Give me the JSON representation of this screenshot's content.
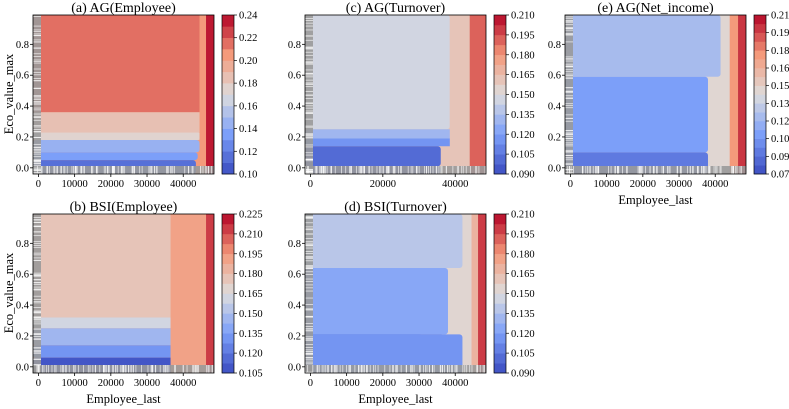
{
  "figure": {
    "ylabel": "Eco_value_max",
    "xlabel": "Employee_last"
  },
  "chart_data": [
    {
      "id": "a",
      "type": "heatmap",
      "subtype": "filled-contour partial dependence",
      "title": "(a) AG(Employee)",
      "xlabel": "",
      "ylabel": "Eco_value_max",
      "xlim": [
        -1500,
        48500
      ],
      "ylim": [
        -0.04,
        0.99
      ],
      "xticks": [
        0,
        10000,
        20000,
        30000,
        40000
      ],
      "xtick_labels": [
        "0",
        "10000",
        "20000",
        "30000",
        "40000"
      ],
      "yticks": [
        0.0,
        0.2,
        0.4,
        0.6,
        0.8
      ],
      "ytick_labels": [
        "0.0",
        "0.2",
        "0.4",
        "0.6",
        "0.8"
      ],
      "colorbar": {
        "ticks": [
          0.1,
          0.12,
          0.14,
          0.16,
          0.18,
          0.2,
          0.22,
          0.24
        ],
        "tick_labels": [
          "0.10",
          "0.12",
          "0.14",
          "0.16",
          "0.18",
          "0.20",
          "0.22",
          "0.24"
        ],
        "levels": 14
      },
      "zones": [
        {
          "y_min": 0.36,
          "y_max": 0.99,
          "x_max": 46500,
          "value": 0.215
        },
        {
          "y_min": 0.23,
          "y_max": 0.36,
          "x_max": 47000,
          "value": 0.185
        },
        {
          "y_min": 0.18,
          "y_max": 0.23,
          "x_max": 45000,
          "value": 0.17
        },
        {
          "y_min": 0.1,
          "y_max": 0.18,
          "x_max": 44500,
          "value": 0.15
        },
        {
          "y_min": 0.05,
          "y_max": 0.1,
          "x_max": 44000,
          "value": 0.135
        },
        {
          "y_min": -0.04,
          "y_max": 0.05,
          "x_max": 43500,
          "value": 0.115
        }
      ],
      "right_edge": [
        {
          "x_min": 44500,
          "x_max": 46300,
          "value": 0.2
        },
        {
          "x_min": 46300,
          "x_max": 48500,
          "value": 0.232
        }
      ]
    },
    {
      "id": "b",
      "type": "heatmap",
      "subtype": "filled-contour partial dependence",
      "title": "(b) BSI(Employee)",
      "xlabel": "Employee_last",
      "ylabel": "Eco_value_max",
      "xlim": [
        -1500,
        48500
      ],
      "ylim": [
        -0.04,
        0.99
      ],
      "xticks": [
        0,
        10000,
        20000,
        30000,
        40000
      ],
      "xtick_labels": [
        "0",
        "10000",
        "20000",
        "30000",
        "40000"
      ],
      "yticks": [
        0.0,
        0.2,
        0.4,
        0.6,
        0.8
      ],
      "ytick_labels": [
        "0.0",
        "0.2",
        "0.4",
        "0.6",
        "0.8"
      ],
      "colorbar": {
        "ticks": [
          0.105,
          0.12,
          0.135,
          0.15,
          0.165,
          0.18,
          0.195,
          0.21,
          0.225
        ],
        "tick_labels": [
          "0.105",
          "0.120",
          "0.135",
          "0.150",
          "0.165",
          "0.180",
          "0.195",
          "0.210",
          "0.225"
        ],
        "levels": 16
      },
      "zones": [
        {
          "y_min": 0.32,
          "y_max": 0.99,
          "x_max": 46500,
          "value": 0.175
        },
        {
          "y_min": 0.25,
          "y_max": 0.32,
          "x_max": 46000,
          "value": 0.16
        },
        {
          "y_min": 0.14,
          "y_max": 0.25,
          "x_max": 45500,
          "value": 0.145
        },
        {
          "y_min": 0.06,
          "y_max": 0.14,
          "x_max": 44000,
          "value": 0.13
        },
        {
          "y_min": -0.04,
          "y_max": 0.06,
          "x_max": 38000,
          "value": 0.112
        }
      ],
      "right_edge": [
        {
          "x_min": 36500,
          "x_max": 46300,
          "value": 0.19
        },
        {
          "x_min": 46300,
          "x_max": 48500,
          "value": 0.215
        }
      ]
    },
    {
      "id": "c",
      "type": "heatmap",
      "subtype": "filled-contour partial dependence",
      "title": "(c) AG(Turnover)",
      "xlabel": "",
      "ylabel": "",
      "xlim": [
        -1500,
        48500
      ],
      "ylim": [
        -0.04,
        0.99
      ],
      "xticks": [
        0,
        20000,
        40000
      ],
      "xtick_labels": [
        "0",
        "20000",
        "40000"
      ],
      "yticks": [
        0.0,
        0.2,
        0.4,
        0.6,
        0.8
      ],
      "ytick_labels": [
        "0.0",
        "0.2",
        "0.4",
        "0.6",
        "0.8"
      ],
      "colorbar": {
        "ticks": [
          0.09,
          0.105,
          0.12,
          0.135,
          0.15,
          0.165,
          0.18,
          0.195,
          0.21
        ],
        "tick_labels": [
          "0.090",
          "0.105",
          "0.120",
          "0.135",
          "0.150",
          "0.165",
          "0.180",
          "0.195",
          "0.210"
        ],
        "levels": 16
      },
      "zones": [
        {
          "y_min": 0.25,
          "y_max": 0.99,
          "x_max": 38500,
          "value": 0.145
        },
        {
          "y_min": 0.19,
          "y_max": 0.25,
          "x_max": 41000,
          "value": 0.13
        },
        {
          "y_min": 0.14,
          "y_max": 0.19,
          "x_max": 42500,
          "value": 0.118
        },
        {
          "y_min": 0.01,
          "y_max": 0.14,
          "x_max": 36000,
          "value": 0.103
        },
        {
          "y_min": -0.04,
          "y_max": 0.01,
          "x_max": 36000,
          "value": 0.095
        }
      ],
      "right_edge": [
        {
          "x_min": 38500,
          "x_max": 44000,
          "value": 0.16
        },
        {
          "x_min": 44000,
          "x_max": 48500,
          "value": 0.19
        }
      ]
    },
    {
      "id": "d",
      "type": "heatmap",
      "subtype": "filled-contour partial dependence",
      "title": "(d) BSI(Turnover)",
      "xlabel": "Employee_last",
      "ylabel": "",
      "xlim": [
        -1500,
        48500
      ],
      "ylim": [
        -0.04,
        0.99
      ],
      "xticks": [
        0,
        10000,
        20000,
        30000,
        40000
      ],
      "xtick_labels": [
        "0",
        "10000",
        "20000",
        "30000",
        "40000"
      ],
      "yticks": [
        0.0,
        0.2,
        0.4,
        0.6,
        0.8
      ],
      "ytick_labels": [
        "0.0",
        "0.2",
        "0.4",
        "0.6",
        "0.8"
      ],
      "colorbar": {
        "ticks": [
          0.09,
          0.105,
          0.12,
          0.135,
          0.15,
          0.165,
          0.18,
          0.195,
          0.21
        ],
        "tick_labels": [
          "0.090",
          "0.105",
          "0.120",
          "0.135",
          "0.150",
          "0.165",
          "0.180",
          "0.195",
          "0.210"
        ],
        "levels": 16
      },
      "zones": [
        {
          "y_min": 0.64,
          "y_max": 0.99,
          "x_max": 42000,
          "value": 0.135
        },
        {
          "y_min": 0.21,
          "y_max": 0.64,
          "x_max": 31000,
          "value": 0.118
        },
        {
          "y_min": 0.21,
          "y_max": 0.64,
          "x_max": 38000,
          "value": 0.125
        },
        {
          "y_min": -0.04,
          "y_max": 0.21,
          "x_max": 37000,
          "value": 0.104
        },
        {
          "y_min": -0.04,
          "y_max": 0.21,
          "x_max": 42000,
          "value": 0.118
        }
      ],
      "right_edge": [
        {
          "x_min": 42000,
          "x_max": 44500,
          "value": 0.15
        },
        {
          "x_min": 44500,
          "x_max": 46300,
          "value": 0.17
        },
        {
          "x_min": 46300,
          "x_max": 48500,
          "value": 0.195
        }
      ]
    },
    {
      "id": "e",
      "type": "heatmap",
      "subtype": "filled-contour partial dependence",
      "title": "(e) AG(Net_income)",
      "xlabel": "Employee_last",
      "ylabel": "",
      "xlim": [
        -1500,
        48500
      ],
      "ylim": [
        -0.04,
        0.99
      ],
      "xticks": [
        0,
        10000,
        20000,
        30000,
        40000
      ],
      "xtick_labels": [
        "0",
        "10000",
        "20000",
        "30000",
        "40000"
      ],
      "yticks": [
        0.0,
        0.2,
        0.4,
        0.6,
        0.8
      ],
      "ytick_labels": [
        "0.0",
        "0.2",
        "0.4",
        "0.6",
        "0.8"
      ],
      "colorbar": {
        "ticks": [
          0.075,
          0.09,
          0.105,
          0.12,
          0.135,
          0.15,
          0.165,
          0.18,
          0.195,
          0.21
        ],
        "tick_labels": [
          "0.075",
          "0.090",
          "0.105",
          "0.120",
          "0.135",
          "0.150",
          "0.165",
          "0.180",
          "0.195",
          "0.210"
        ],
        "levels": 18
      },
      "zones": [
        {
          "y_min": 0.59,
          "y_max": 0.99,
          "x_max": 41500,
          "value": 0.125
        },
        {
          "y_min": 0.1,
          "y_max": 0.59,
          "x_max": 38000,
          "value": 0.112
        },
        {
          "y_min": -0.04,
          "y_max": 0.1,
          "x_max": 38000,
          "value": 0.093
        }
      ],
      "right_edge": [
        {
          "x_min": 41500,
          "x_max": 44000,
          "value": 0.15
        },
        {
          "x_min": 44000,
          "x_max": 46300,
          "value": 0.175
        },
        {
          "x_min": 46300,
          "x_max": 48500,
          "value": 0.2
        }
      ]
    }
  ]
}
